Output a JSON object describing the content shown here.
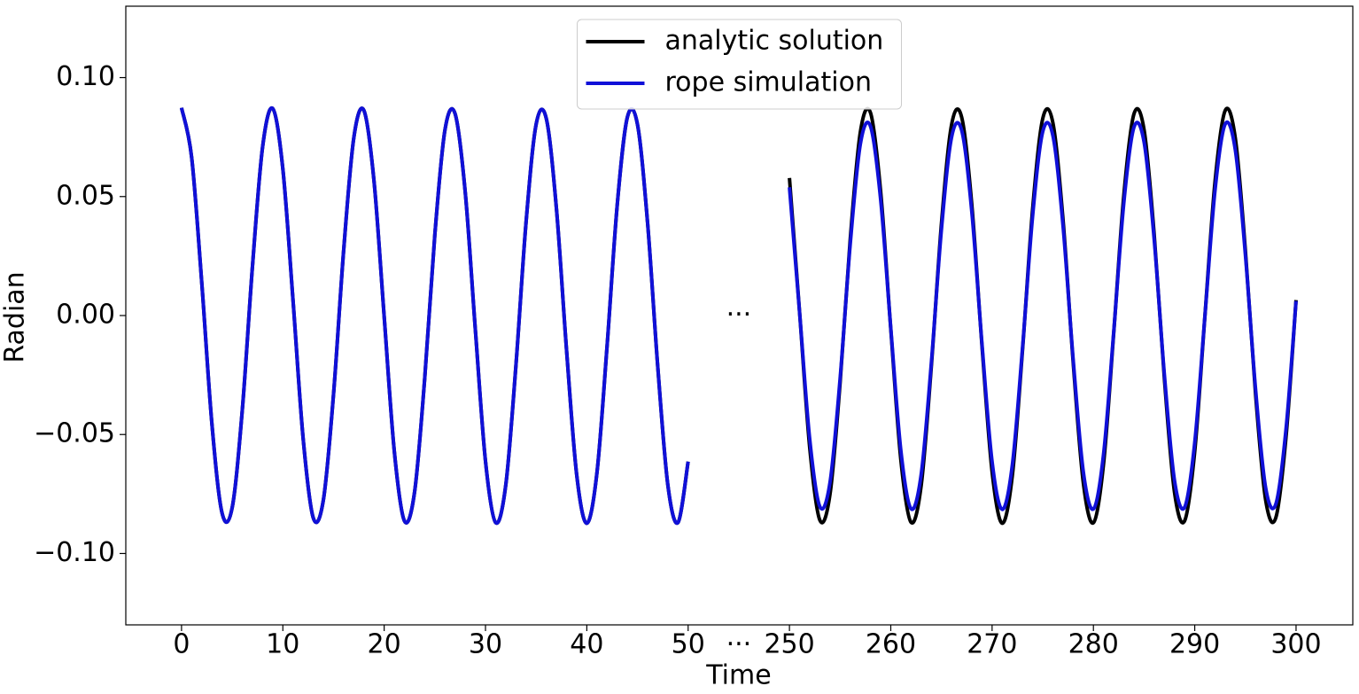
{
  "chart_data": {
    "type": "line",
    "x_label": "Time",
    "y_label": "Radian",
    "x_break": [
      50,
      250
    ],
    "break_label": "···",
    "xlim": [
      -5.5,
      305.6
    ],
    "ylim": [
      -0.13,
      0.13
    ],
    "xticks": [
      0,
      10,
      20,
      30,
      40,
      50,
      250,
      260,
      270,
      280,
      290,
      300
    ],
    "yticks": [
      {
        "value": -0.1,
        "label": "−0.10"
      },
      {
        "value": -0.05,
        "label": "−0.05"
      },
      {
        "value": 0,
        "label": "0.00"
      },
      {
        "value": 0.05,
        "label": "0.05"
      },
      {
        "value": 0.1,
        "label": "0.10"
      }
    ],
    "legend": "upper center",
    "x": [
      0,
      1,
      2,
      3,
      4,
      5,
      6,
      7,
      8,
      9,
      10,
      11,
      12,
      13,
      14,
      15,
      16,
      17,
      18,
      19,
      20,
      21,
      22,
      23,
      24,
      25,
      26,
      27,
      28,
      29,
      30,
      31,
      32,
      33,
      34,
      35,
      36,
      37,
      38,
      39,
      40,
      41,
      42,
      43,
      44,
      45,
      46,
      47,
      48,
      49,
      50,
      250,
      251,
      252,
      253,
      254,
      255,
      256,
      257,
      258,
      259,
      260,
      261,
      262,
      263,
      264,
      265,
      266,
      267,
      268,
      269,
      270,
      271,
      272,
      273,
      274,
      275,
      276,
      277,
      278,
      279,
      280,
      281,
      282,
      283,
      284,
      285,
      286,
      287,
      288,
      289,
      290,
      291,
      292,
      293,
      294,
      295,
      296,
      297,
      298,
      299,
      300
    ],
    "series": [
      {
        "name": "analytic solution",
        "color": "#000000",
        "values": [
          0.0873,
          0.0664,
          0.0136,
          -0.0456,
          -0.083,
          -0.0807,
          -0.0396,
          0.0206,
          0.0708,
          0.087,
          0.0616,
          0.0066,
          -0.0515,
          -0.085,
          -0.0775,
          -0.0332,
          0.0273,
          0.0746,
          0.0862,
          0.0564,
          -0.0004,
          -0.057,
          -0.0863,
          -0.0742,
          -0.0265,
          0.0339,
          0.078,
          0.0848,
          0.0519,
          -0.006,
          -0.0612,
          -0.087,
          -0.0713,
          -0.0212,
          0.039,
          0.0804,
          0.0828,
          0.045,
          -0.0145,
          -0.0669,
          -0.0873,
          -0.0661,
          -0.0128,
          0.0464,
          0.0833,
          0.0803,
          0.0388,
          -0.0214,
          -0.0713,
          -0.087,
          -0.0614,
          0.0578,
          0.0014,
          -0.0556,
          -0.086,
          -0.0752,
          -0.0283,
          0.0322,
          0.0772,
          0.0852,
          0.0522,
          -0.0057,
          -0.0609,
          -0.0869,
          -0.0715,
          -0.0216,
          0.0386,
          0.0802,
          0.0833,
          0.0465,
          -0.0127,
          -0.0657,
          -0.0873,
          -0.0672,
          -0.0147,
          0.0448,
          0.0828,
          0.081,
          0.0404,
          -0.0196,
          -0.0702,
          -0.0871,
          -0.0624,
          -0.0076,
          0.0506,
          0.0847,
          0.0781,
          0.034,
          -0.0264,
          -0.0742,
          -0.0863,
          -0.0571,
          -0.0005,
          0.0562,
          0.0861,
          0.0747,
          0.0274,
          -0.033,
          -0.0776,
          -0.085,
          -0.0515,
          0.0065
        ]
      },
      {
        "name": "rope simulation",
        "color": "#1010d8",
        "values": [
          0.0873,
          0.0664,
          0.0136,
          -0.0456,
          -0.083,
          -0.0807,
          -0.0396,
          0.0206,
          0.0708,
          0.087,
          0.0616,
          0.0066,
          -0.0515,
          -0.085,
          -0.0775,
          -0.0332,
          0.0273,
          0.0746,
          0.0862,
          0.0564,
          -0.0004,
          -0.057,
          -0.0863,
          -0.0742,
          -0.0265,
          0.0339,
          0.078,
          0.0848,
          0.0519,
          -0.006,
          -0.0612,
          -0.087,
          -0.0713,
          -0.0212,
          0.039,
          0.0804,
          0.0828,
          0.045,
          -0.0145,
          -0.0669,
          -0.0873,
          -0.0661,
          -0.0128,
          0.0464,
          0.0833,
          0.0803,
          0.0388,
          -0.0214,
          -0.0713,
          -0.087,
          -0.0614,
          0.0539,
          0.0013,
          -0.0519,
          -0.0803,
          -0.0702,
          -0.0264,
          0.03,
          0.0721,
          0.0795,
          0.0487,
          -0.0053,
          -0.0569,
          -0.0812,
          -0.0668,
          -0.0201,
          0.0361,
          0.0749,
          0.0778,
          0.0434,
          -0.0118,
          -0.0614,
          -0.0815,
          -0.0627,
          -0.0137,
          0.0418,
          0.0773,
          0.0756,
          0.0377,
          -0.0183,
          -0.0655,
          -0.0813,
          -0.0583,
          -0.0071,
          0.0473,
          0.0791,
          0.0729,
          0.0318,
          -0.0246,
          -0.0692,
          -0.0806,
          -0.0533,
          -0.0005,
          0.0525,
          0.0804,
          0.0697,
          0.0255,
          -0.0308,
          -0.0724,
          -0.0793,
          -0.0481,
          0.0061
        ]
      }
    ]
  }
}
